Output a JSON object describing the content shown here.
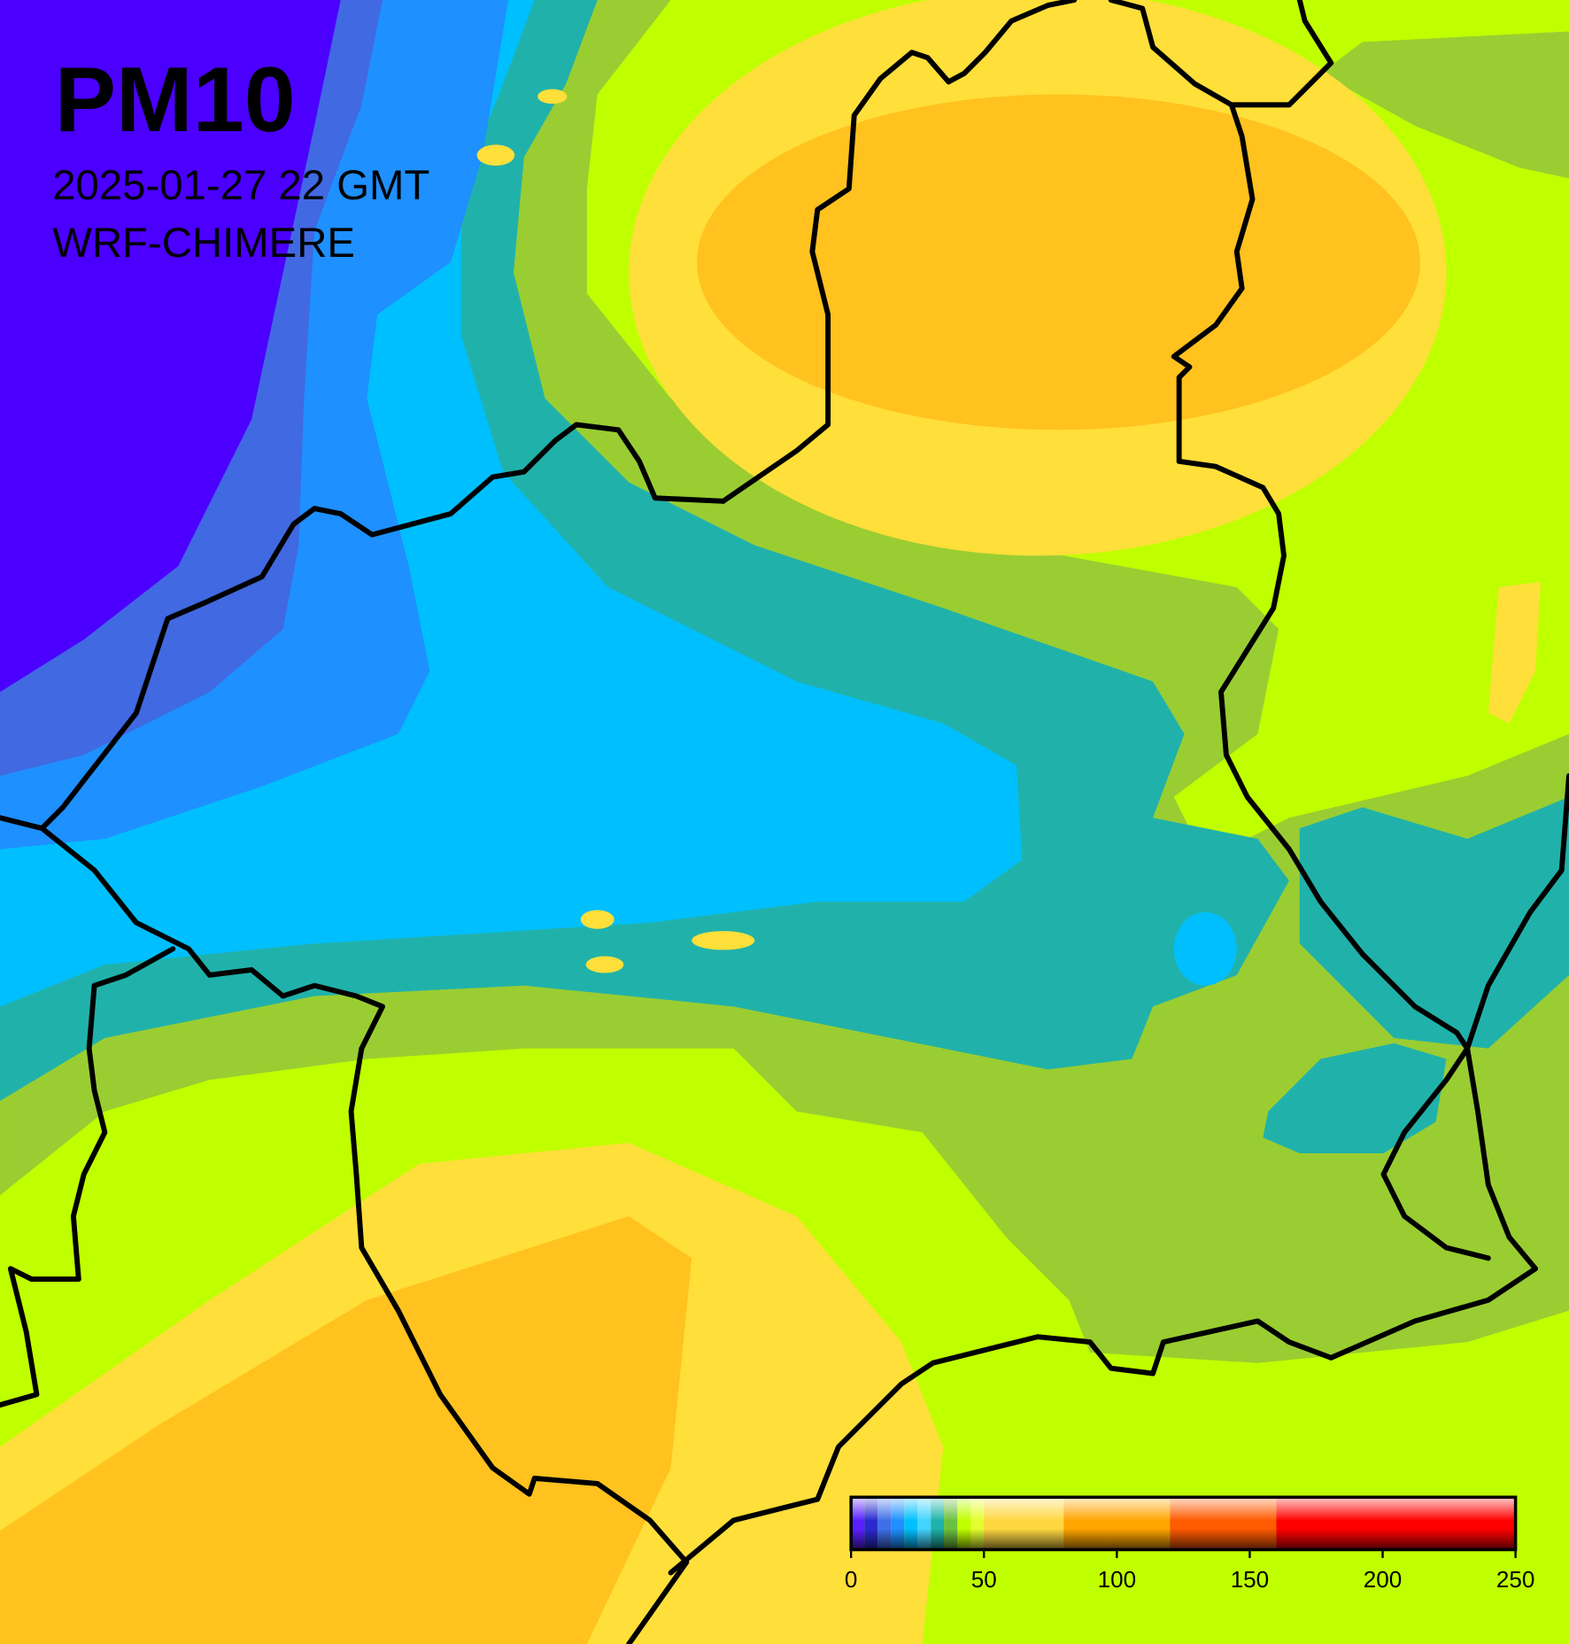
{
  "header": {
    "title": "PM10",
    "timestamp": "2025-01-27 22 GMT",
    "model": "WRF-CHIMERE"
  },
  "colorbar": {
    "range": [
      0,
      250
    ],
    "ticks": [
      0,
      50,
      100,
      150,
      200,
      250
    ],
    "bins": [
      0,
      5,
      10,
      15,
      20,
      25,
      30,
      35,
      40,
      45,
      50,
      80,
      120,
      160,
      250
    ],
    "colors": [
      "#5a20ff",
      "#2a2ad0",
      "#3f6fe8",
      "#1e90ff",
      "#00bfff",
      "#40d4ff",
      "#20b2aa",
      "#6cc040",
      "#c0ff00",
      "#e4ff30",
      "#ffd740",
      "#ffa500",
      "#ff5a00",
      "#ff0000"
    ]
  }
}
